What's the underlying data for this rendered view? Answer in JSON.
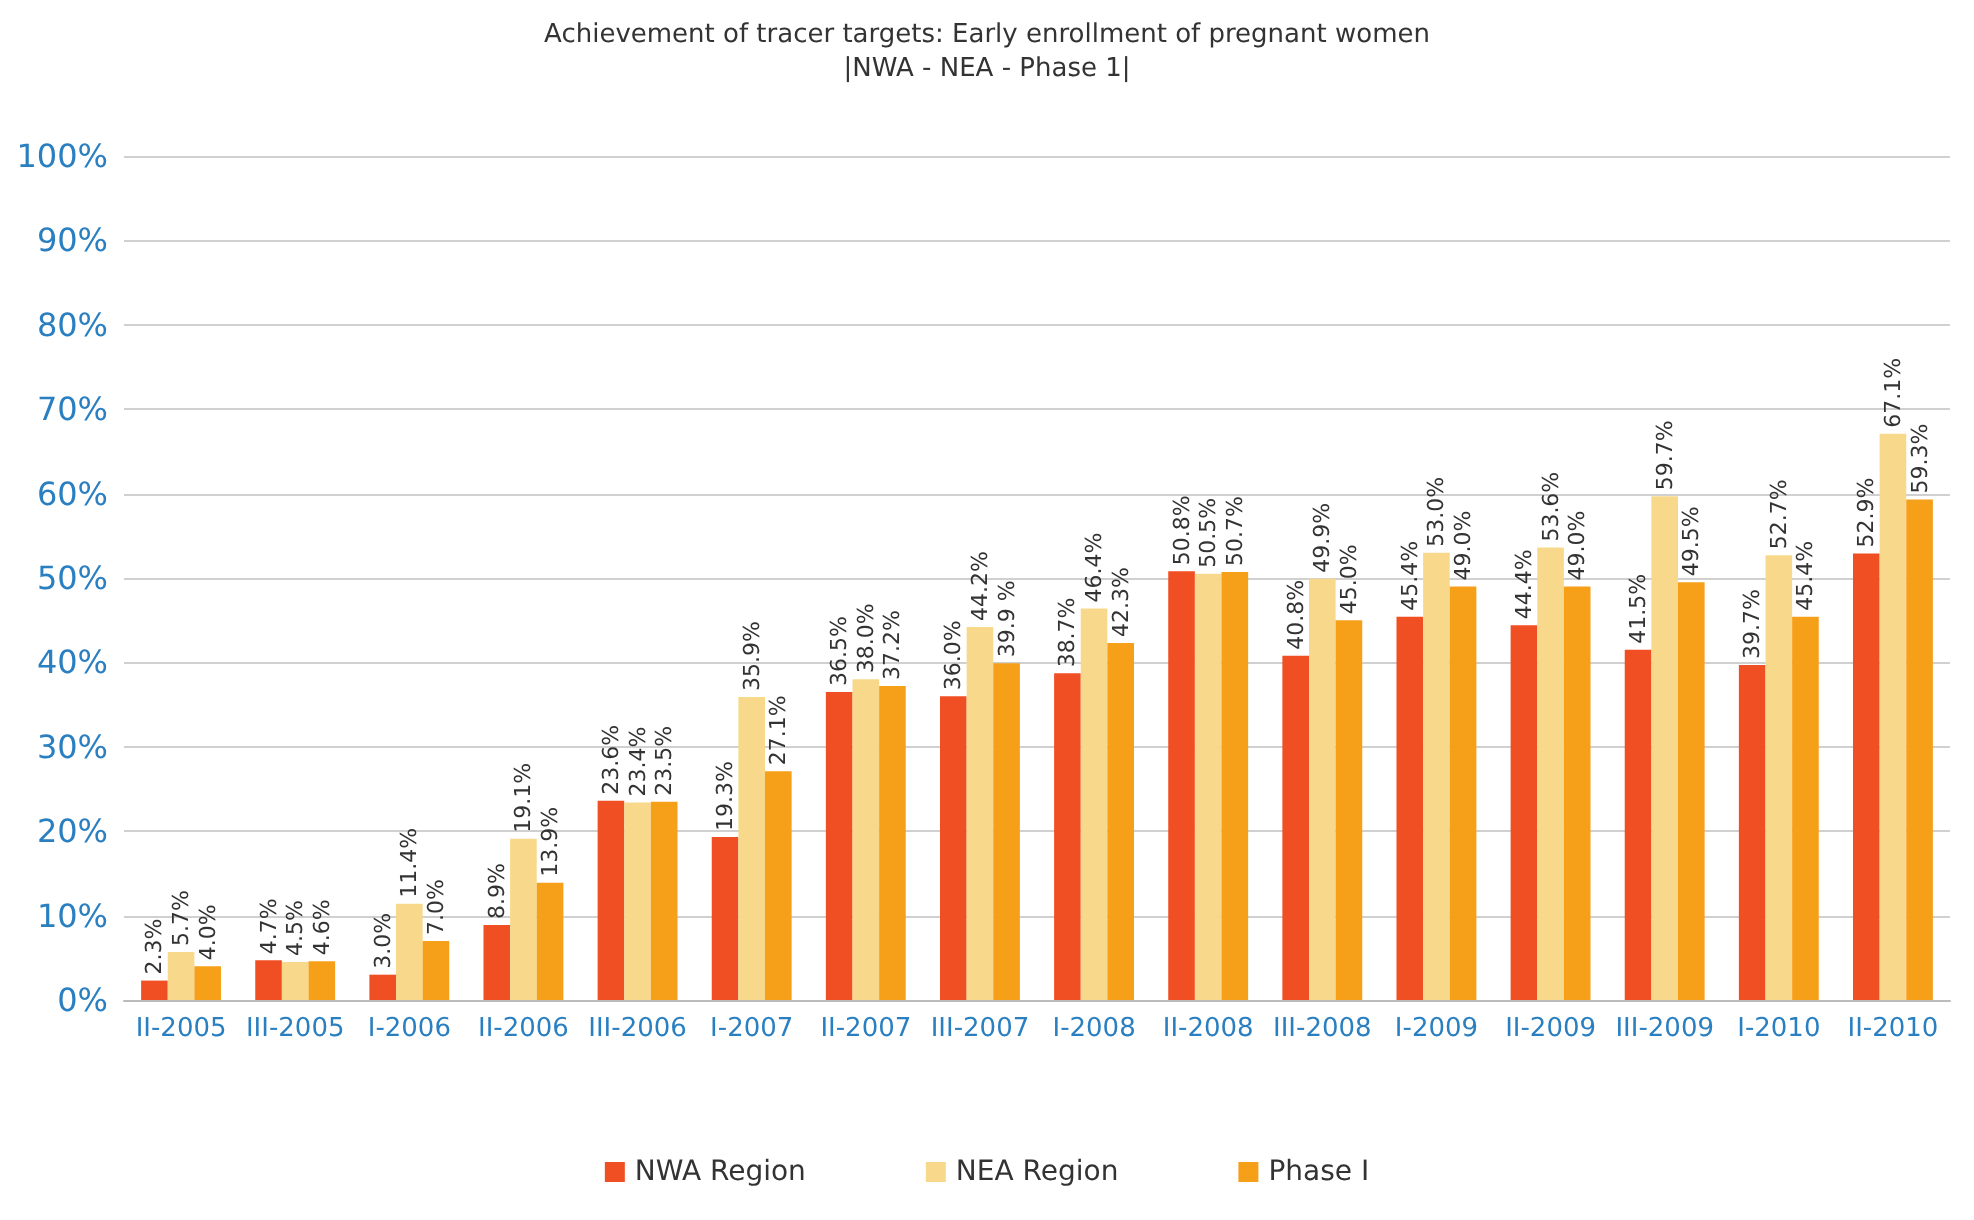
{
  "chart_data": {
    "type": "bar",
    "title": "Achievement of tracer targets: Early enrollment of pregnant women",
    "subtitle": "|NWA - NEA - Phase 1|",
    "categories": [
      "II-2005",
      "III-2005",
      "I-2006",
      "II-2006",
      "III-2006",
      "I-2007",
      "II-2007",
      "III-2007",
      "I-2008",
      "II-2008",
      "III-2008",
      "I-2009",
      "II-2009",
      "III-2009",
      "I-2010",
      "II-2010"
    ],
    "series": [
      {
        "name": "NWA Region",
        "color": "#f04e23",
        "values": [
          2.3,
          4.7,
          3.0,
          8.9,
          23.6,
          19.3,
          36.5,
          36.0,
          38.7,
          50.8,
          40.8,
          45.4,
          44.4,
          41.5,
          39.7,
          52.9
        ],
        "value_labels": [
          "2.3%",
          "4.7%",
          "3.0%",
          "8.9%",
          "23.6%",
          "19.3%",
          "36.5%",
          "36.0%",
          "38.7%",
          "50.8%",
          "40.8%",
          "45.4%",
          "44.4%",
          "41.5%",
          "39.7%",
          "52.9%"
        ]
      },
      {
        "name": "NEA Region",
        "color": "#f8d98b",
        "values": [
          5.7,
          4.5,
          11.4,
          19.1,
          23.4,
          35.9,
          38.0,
          44.2,
          46.4,
          50.5,
          49.9,
          53.0,
          53.6,
          59.7,
          52.7,
          67.1
        ],
        "value_labels": [
          "5.7%",
          "4.5%",
          "11.4%",
          "19.1%",
          "23.4%",
          "35.9%",
          "38.0%",
          "44.2%",
          "46.4%",
          "50.5%",
          "49.9%",
          "53.0%",
          "53.6%",
          "59.7%",
          "52.7%",
          "67.1%"
        ]
      },
      {
        "name": "Phase I",
        "color": "#f6a01a",
        "values": [
          4.0,
          4.6,
          7.0,
          13.9,
          23.5,
          27.1,
          37.2,
          39.9,
          42.3,
          50.7,
          45.0,
          49.0,
          49.0,
          49.5,
          45.4,
          59.3
        ],
        "value_labels": [
          "4.0%",
          "4.6%",
          "7.0%",
          "13.9%",
          "23.5%",
          "27.1%",
          "37.2%",
          "39.9 %",
          "42.3%",
          "50.7%",
          "45.0%",
          "49.0%",
          "49.0%",
          "49.5%",
          "45.4%",
          "59.3%"
        ]
      }
    ],
    "ylim": [
      0,
      100
    ],
    "yticks": [
      {
        "value": 0,
        "label": "0%"
      },
      {
        "value": 10,
        "label": "10%"
      },
      {
        "value": 20,
        "label": "20%"
      },
      {
        "value": 30,
        "label": "30%"
      },
      {
        "value": 40,
        "label": "40%"
      },
      {
        "value": 50,
        "label": "50%"
      },
      {
        "value": 60,
        "label": "60%"
      },
      {
        "value": 70,
        "label": "70%"
      },
      {
        "value": 80,
        "label": "80%"
      },
      {
        "value": 90,
        "label": "90%"
      },
      {
        "value": 100,
        "label": "100%"
      }
    ],
    "grid": "y",
    "legend": "bottom"
  }
}
